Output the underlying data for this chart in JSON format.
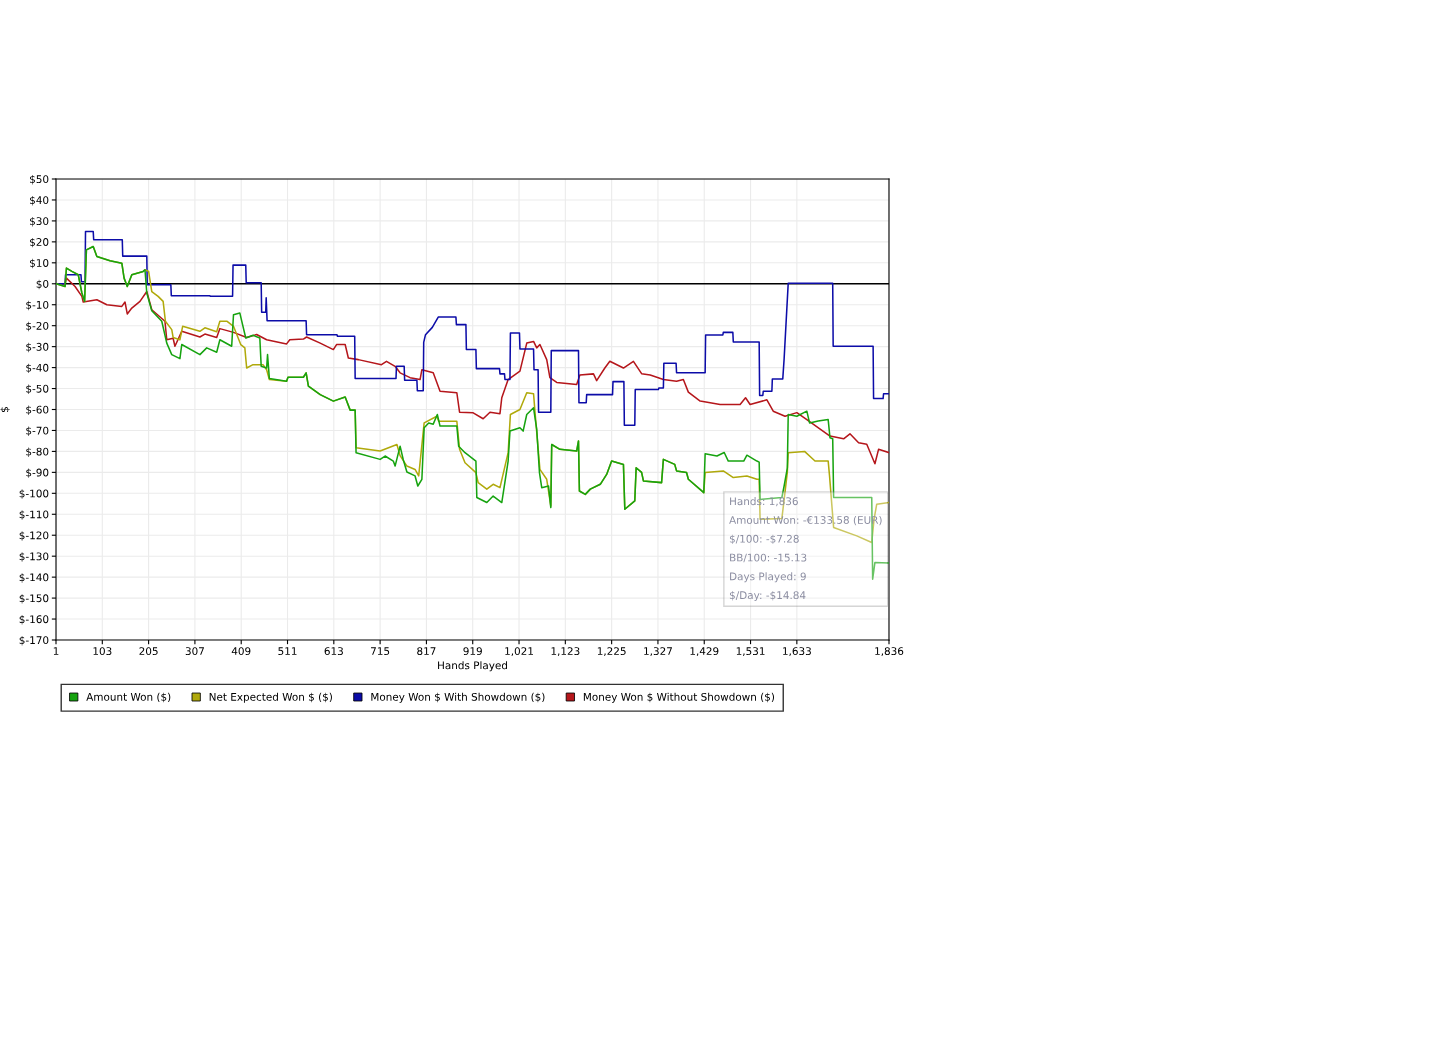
{
  "chart_data": {
    "type": "line",
    "xlabel": "Hands Played",
    "ylabel": "$",
    "xlim": [
      1,
      1836
    ],
    "xticks": [
      1,
      103,
      205,
      307,
      409,
      511,
      613,
      715,
      817,
      919,
      {
        "value": 1021,
        "label": "1,021"
      },
      {
        "value": 1123,
        "label": "1,123"
      },
      {
        "value": 1225,
        "label": "1,225"
      },
      {
        "value": 1327,
        "label": "1,327"
      },
      {
        "value": 1429,
        "label": "1,429"
      },
      {
        "value": 1531,
        "label": "1,531"
      },
      {
        "value": 1633,
        "label": "1,633"
      },
      {
        "value": 1836,
        "label": "1,836"
      }
    ],
    "ylim": [
      -170,
      50
    ],
    "yticks": [
      {
        "value": -170,
        "label": "$-170"
      },
      {
        "value": -160,
        "label": "$-160"
      },
      {
        "value": -150,
        "label": "$-150"
      },
      {
        "value": -140,
        "label": "$-140"
      },
      {
        "value": -130,
        "label": "$-130"
      },
      {
        "value": -120,
        "label": "$-120"
      },
      {
        "value": -110,
        "label": "$-110"
      },
      {
        "value": -100,
        "label": "$-100"
      },
      {
        "value": -90,
        "label": "$-90"
      },
      {
        "value": -80,
        "label": "$-80"
      },
      {
        "value": -70,
        "label": "$-70"
      },
      {
        "value": -60,
        "label": "$-60"
      },
      {
        "value": -50,
        "label": "$-50"
      },
      {
        "value": -40,
        "label": "$-40"
      },
      {
        "value": -30,
        "label": "$-30"
      },
      {
        "value": -20,
        "label": "$-20"
      },
      {
        "value": -10,
        "label": "$-10"
      },
      {
        "value": 0,
        "label": "$0"
      },
      {
        "value": 10,
        "label": "$10"
      },
      {
        "value": 20,
        "label": "$20"
      },
      {
        "value": 30,
        "label": "$30"
      },
      {
        "value": 40,
        "label": "$40"
      },
      {
        "value": 50,
        "label": "$50"
      }
    ],
    "grid": true,
    "legend": "bottom",
    "marker": "none",
    "line_style": "solid",
    "ref_lines": [
      {
        "axis": "y",
        "value": 0,
        "color": "#000000"
      }
    ],
    "annotations": [
      "Hands: 1,836",
      "Amount Won: -€133.58 (EUR)",
      "$/100: -$7.28",
      "BB/100: -15.13",
      "Days Played: 9",
      "$/Day: -$14.84"
    ],
    "series": [
      {
        "name": "Amount Won ($)",
        "color": "#16a30f",
        "x": [
          1,
          21,
          24,
          36,
          50,
          58,
          64,
          68,
          83,
          91,
          120,
          146,
          151,
          158,
          168,
          193,
          197,
          201,
          212,
          234,
          245,
          256,
          274,
          278,
          318,
          333,
          355,
          362,
          388,
          392,
          406,
          419,
          435,
          450,
          453,
          465,
          467,
          471,
          509,
          512,
          546,
          552,
          557,
          583,
          612,
          638,
          649,
          660,
          662,
          715,
          726,
          744,
          748,
          759,
          766,
          774,
          792,
          798,
          807,
          812,
          822,
          832,
          841,
          847,
          884,
          888,
          902,
          926,
          928,
          950,
          964,
          983,
          997,
          1001,
          1023,
          1030,
          1038,
          1053,
          1060,
          1066,
          1071,
          1086,
          1091,
          1093,
          1111,
          1148,
          1152,
          1154,
          1167,
          1178,
          1200,
          1214,
          1225,
          1251,
          1254,
          1276,
          1279,
          1291,
          1295,
          1335,
          1339,
          1364,
          1368,
          1390,
          1394,
          1428,
          1431,
          1457,
          1473,
          1482,
          1516,
          1523,
          1545,
          1550,
          1552,
          1600,
          1605,
          1612,
          1614,
          1633,
          1655,
          1661,
          1680,
          1702,
          1706,
          1712,
          1714,
          1798,
          1800,
          1805,
          1836
        ],
        "values": [
          0,
          -1.3,
          7.5,
          5.9,
          4.3,
          -4.4,
          -8.4,
          16.2,
          17.8,
          13,
          11,
          9.8,
          2.7,
          -1.3,
          4.3,
          5.9,
          6.7,
          -4.4,
          -12.9,
          -17.9,
          -28.3,
          -33.8,
          -35.7,
          -29,
          -33.8,
          -30.6,
          -32.7,
          -26.7,
          -29.8,
          -14.8,
          -14,
          -25.9,
          -24.6,
          -25.9,
          -39.4,
          -40.2,
          -33.8,
          -45.2,
          -46.5,
          -44.6,
          -44.6,
          -42.5,
          -48.9,
          -52.9,
          -56,
          -54,
          -60.3,
          -60.3,
          -80.6,
          -83.8,
          -82.2,
          -84.6,
          -87,
          -77.5,
          -84,
          -89.8,
          -91.7,
          -96.5,
          -93.3,
          -68.7,
          -66.4,
          -67,
          -62.4,
          -67.9,
          -67.9,
          -77.5,
          -80.6,
          -84.6,
          -102,
          -104.4,
          -101.3,
          -104.4,
          -84.6,
          -70.3,
          -68.7,
          -70.3,
          -62.4,
          -59.2,
          -69.5,
          -90.1,
          -97.3,
          -96.5,
          -106.8,
          -76.7,
          -79,
          -79.8,
          -75,
          -98.9,
          -100.5,
          -98,
          -95.7,
          -91,
          -84.6,
          -86.2,
          -107.6,
          -103.6,
          -87.8,
          -90,
          -94.1,
          -94.9,
          -83.8,
          -86.2,
          -89.3,
          -90.1,
          -93.3,
          -99.7,
          -81.1,
          -82.2,
          -80.5,
          -84.6,
          -84.6,
          -81.8,
          -84.6,
          -85.1,
          -102.9,
          -102,
          -96.5,
          -88,
          -62.4,
          -63.2,
          -60.8,
          -66.4,
          -65.5,
          -64.8,
          -73.5,
          -74,
          -102,
          -102,
          -141,
          -133,
          -133.3
        ]
      },
      {
        "name": "Net Expected Won $ ($)",
        "color": "#b0a90b",
        "x": [
          1,
          21,
          24,
          36,
          50,
          58,
          64,
          68,
          83,
          91,
          120,
          146,
          151,
          158,
          168,
          193,
          197,
          205,
          212,
          226,
          237,
          242,
          256,
          259,
          274,
          280,
          318,
          329,
          355,
          362,
          378,
          392,
          408,
          417,
          421,
          435,
          457,
          465,
          471,
          509,
          512,
          546,
          552,
          557,
          583,
          612,
          638,
          649,
          660,
          662,
          715,
          752,
          759,
          774,
          792,
          800,
          812,
          840,
          844,
          884,
          890,
          902,
          926,
          931,
          950,
          964,
          979,
          997,
          1002,
          1023,
          1038,
          1053,
          1056,
          1067,
          1082,
          1091,
          1093,
          1111,
          1148,
          1152,
          1154,
          1167,
          1178,
          1200,
          1214,
          1225,
          1251,
          1254,
          1276,
          1279,
          1291,
          1295,
          1335,
          1339,
          1364,
          1368,
          1390,
          1394,
          1428,
          1431,
          1471,
          1493,
          1523,
          1545,
          1550,
          1552,
          1600,
          1605,
          1612,
          1614,
          1650,
          1673,
          1702,
          1705,
          1714,
          1765,
          1798,
          1803,
          1809,
          1836
        ],
        "values": [
          0,
          -1.3,
          7.5,
          5.9,
          4.3,
          -4.4,
          -8.4,
          16.2,
          17.8,
          13,
          11,
          9.8,
          2.7,
          -1.3,
          4.3,
          5.9,
          6.7,
          5.9,
          -3.7,
          -6,
          -8.4,
          -17.9,
          -21.9,
          -25.6,
          -26.7,
          -20.3,
          -22.7,
          -21,
          -22.9,
          -17.9,
          -17.9,
          -20.3,
          -29,
          -30.6,
          -40.2,
          -38.6,
          -38.6,
          -41,
          -45.7,
          -46.5,
          -44.6,
          -44.6,
          -42.5,
          -48.9,
          -52.9,
          -56,
          -54,
          -60.3,
          -60.3,
          -78.3,
          -79.8,
          -76.7,
          -82,
          -87,
          -88.6,
          -91.7,
          -66.4,
          -63.2,
          -65.6,
          -65.6,
          -79,
          -85.4,
          -90.1,
          -94.9,
          -98,
          -95.7,
          -97.3,
          -80.6,
          -62.4,
          -60,
          -52,
          -52.5,
          -60.8,
          -88.6,
          -93.3,
          -106,
          -76.7,
          -79,
          -79.8,
          -75,
          -98.9,
          -100.5,
          -98,
          -95.7,
          -91,
          -84.6,
          -86.2,
          -107.6,
          -103.6,
          -87.8,
          -90,
          -94.1,
          -94.9,
          -83.8,
          -86.2,
          -89.3,
          -90.1,
          -93.3,
          -99.7,
          -90.1,
          -89.3,
          -92.5,
          -91.7,
          -93.3,
          -93.3,
          -112.4,
          -112,
          -103,
          -90,
          -80.6,
          -80,
          -84.6,
          -84.6,
          -91.7,
          -116.3,
          -120.3,
          -123.5,
          -112.4,
          -105.2,
          -104.4
        ]
      },
      {
        "name": "Money Won $ With Showdown ($)",
        "color": "#0c0ca8",
        "x": [
          1,
          21,
          22,
          56,
          57,
          65,
          66,
          83,
          84,
          147,
          148,
          201,
          202,
          254,
          255,
          340,
          341,
          390,
          391,
          419,
          420,
          453,
          454,
          463,
          464,
          466,
          552,
          553,
          620,
          621,
          659,
          660,
          750,
          751,
          768,
          769,
          796,
          797,
          810,
          811,
          815,
          830,
          843,
          882,
          883,
          904,
          905,
          926,
          927,
          978,
          979,
          989,
          990,
          1001,
          1002,
          1022,
          1023,
          1053,
          1054,
          1063,
          1064,
          1091,
          1092,
          1152,
          1153,
          1169,
          1170,
          1227,
          1228,
          1252,
          1253,
          1276,
          1277,
          1328,
          1329,
          1339,
          1340,
          1367,
          1368,
          1431,
          1432,
          1470,
          1471,
          1492,
          1493,
          1550,
          1551,
          1558,
          1559,
          1578,
          1579,
          1602,
          1605,
          1614,
          1712,
          1713,
          1801,
          1802,
          1823,
          1824,
          1836
        ],
        "values": [
          0,
          0,
          4.3,
          4.3,
          1,
          1,
          24.9,
          24.9,
          21,
          21,
          13.2,
          13.2,
          -0.5,
          -0.5,
          -5.7,
          -5.7,
          -6,
          -6,
          8.9,
          8.9,
          0.5,
          0.5,
          -13.6,
          -13.6,
          -6.7,
          -17.6,
          -17.6,
          -24.3,
          -24.3,
          -25,
          -25,
          -45.2,
          -45.2,
          -39.4,
          -39.4,
          -46,
          -46,
          -51,
          -51,
          -28,
          -24.3,
          -20.8,
          -15.9,
          -15.9,
          -19.5,
          -19.5,
          -31.4,
          -31.4,
          -40.5,
          -40.5,
          -43,
          -43,
          -45.7,
          -45.7,
          -23.5,
          -23.5,
          -31.1,
          -31.1,
          -41,
          -41,
          -61.3,
          -61.3,
          -31.9,
          -31.9,
          -56.8,
          -56.8,
          -52.9,
          -52.9,
          -46.7,
          -46.7,
          -67.5,
          -67.5,
          -50.5,
          -50.5,
          -49.7,
          -49.7,
          -37.9,
          -37.9,
          -42.5,
          -42.5,
          -24.4,
          -24.4,
          -23.2,
          -23.2,
          -27.8,
          -27.8,
          -53.3,
          -53.3,
          -51.3,
          -51.3,
          -45.4,
          -45.4,
          -35.7,
          0.3,
          0.3,
          -29.8,
          -29.8,
          -54.8,
          -54.8,
          -52.5,
          -52.5
        ]
      },
      {
        "name": "Money Won $ Without Showdown ($)",
        "color": "#b5161b",
        "x": [
          1,
          21,
          24,
          43,
          58,
          61,
          91,
          113,
          146,
          153,
          158,
          168,
          186,
          201,
          212,
          241,
          245,
          259,
          263,
          278,
          318,
          329,
          355,
          362,
          392,
          421,
          443,
          465,
          509,
          516,
          546,
          553,
          583,
          612,
          619,
          638,
          645,
          667,
          718,
          729,
          748,
          759,
          781,
          803,
          807,
          832,
          847,
          884,
          890,
          920,
          942,
          957,
          979,
          983,
          997,
          1023,
          1038,
          1053,
          1060,
          1067,
          1082,
          1089,
          1104,
          1148,
          1155,
          1185,
          1192,
          1210,
          1221,
          1251,
          1273,
          1291,
          1310,
          1339,
          1368,
          1383,
          1394,
          1420,
          1464,
          1508,
          1520,
          1530,
          1567,
          1581,
          1607,
          1633,
          1655,
          1706,
          1736,
          1750,
          1769,
          1787,
          1805,
          1813,
          1836
        ],
        "values": [
          0,
          0,
          2.7,
          -1.3,
          -6,
          -8.7,
          -7.6,
          -10,
          -10.8,
          -8.7,
          -14.4,
          -11.6,
          -8.4,
          -3.7,
          -12.4,
          -17.9,
          -26.7,
          -26,
          -29.8,
          -22.7,
          -25.4,
          -24,
          -25.6,
          -21.4,
          -23.2,
          -25.6,
          -24.2,
          -26.7,
          -28.7,
          -26.7,
          -26.4,
          -25.4,
          -28.3,
          -31.4,
          -29,
          -29,
          -35.4,
          -36.2,
          -38.6,
          -37,
          -39.4,
          -42.5,
          -44.8,
          -45.7,
          -41,
          -42.5,
          -51.3,
          -52,
          -61.3,
          -61.6,
          -64.4,
          -61.3,
          -62,
          -54.4,
          -45.7,
          -41.7,
          -28.3,
          -27.5,
          -30.6,
          -29,
          -36.2,
          -44.8,
          -47.1,
          -48.1,
          -43.5,
          -43,
          -46.2,
          -40.2,
          -37,
          -40.2,
          -37,
          -42.9,
          -43.5,
          -45.7,
          -46.5,
          -45.7,
          -51.7,
          -56,
          -57.6,
          -57.6,
          -54.4,
          -57.6,
          -55.4,
          -60.8,
          -63.2,
          -61.5,
          -64.8,
          -72.7,
          -74,
          -71.6,
          -75.9,
          -76.6,
          -85.9,
          -79,
          -80.6
        ]
      }
    ]
  }
}
